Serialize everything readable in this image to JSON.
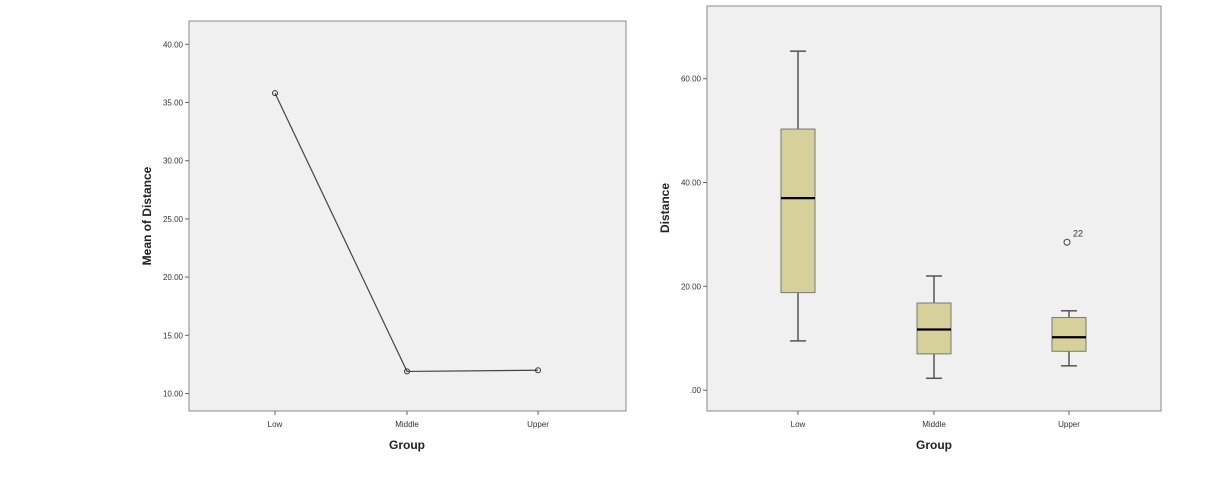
{
  "chart_data": [
    {
      "type": "line",
      "xlabel": "Group",
      "ylabel": "Mean of Distance",
      "categories": [
        "Low",
        "Middle",
        "Upper"
      ],
      "series": [
        {
          "values": [
            35.8,
            11.9,
            12.0
          ]
        }
      ],
      "yticks": [
        "10.00",
        "15.00",
        "20.00",
        "25.00",
        "30.00",
        "35.00",
        "40.00"
      ],
      "ylim": [
        8.5,
        42
      ],
      "grid": false,
      "plot_background": "#f0f0f0",
      "line_color": "#444444"
    },
    {
      "type": "box",
      "xlabel": "Group",
      "ylabel": "Distance",
      "categories": [
        "Low",
        "Middle",
        "Upper"
      ],
      "boxes": [
        {
          "min": 9.5,
          "q1": 18.8,
          "median": 37.0,
          "q3": 50.3,
          "max": 65.3
        },
        {
          "min": 2.3,
          "q1": 7.0,
          "median": 11.7,
          "q3": 16.8,
          "max": 22.0
        },
        {
          "min": 4.7,
          "q1": 7.5,
          "median": 10.2,
          "q3": 14.0,
          "max": 15.3
        }
      ],
      "outliers": [
        {
          "category": "Upper",
          "value": 28.5,
          "label": "22"
        }
      ],
      "yticks": [
        ".00",
        "20.00",
        "40.00",
        "60.00"
      ],
      "ylim": [
        -4,
        74
      ],
      "grid": false,
      "plot_background": "#f0f0f0",
      "box_color": "#d6d19b"
    }
  ]
}
